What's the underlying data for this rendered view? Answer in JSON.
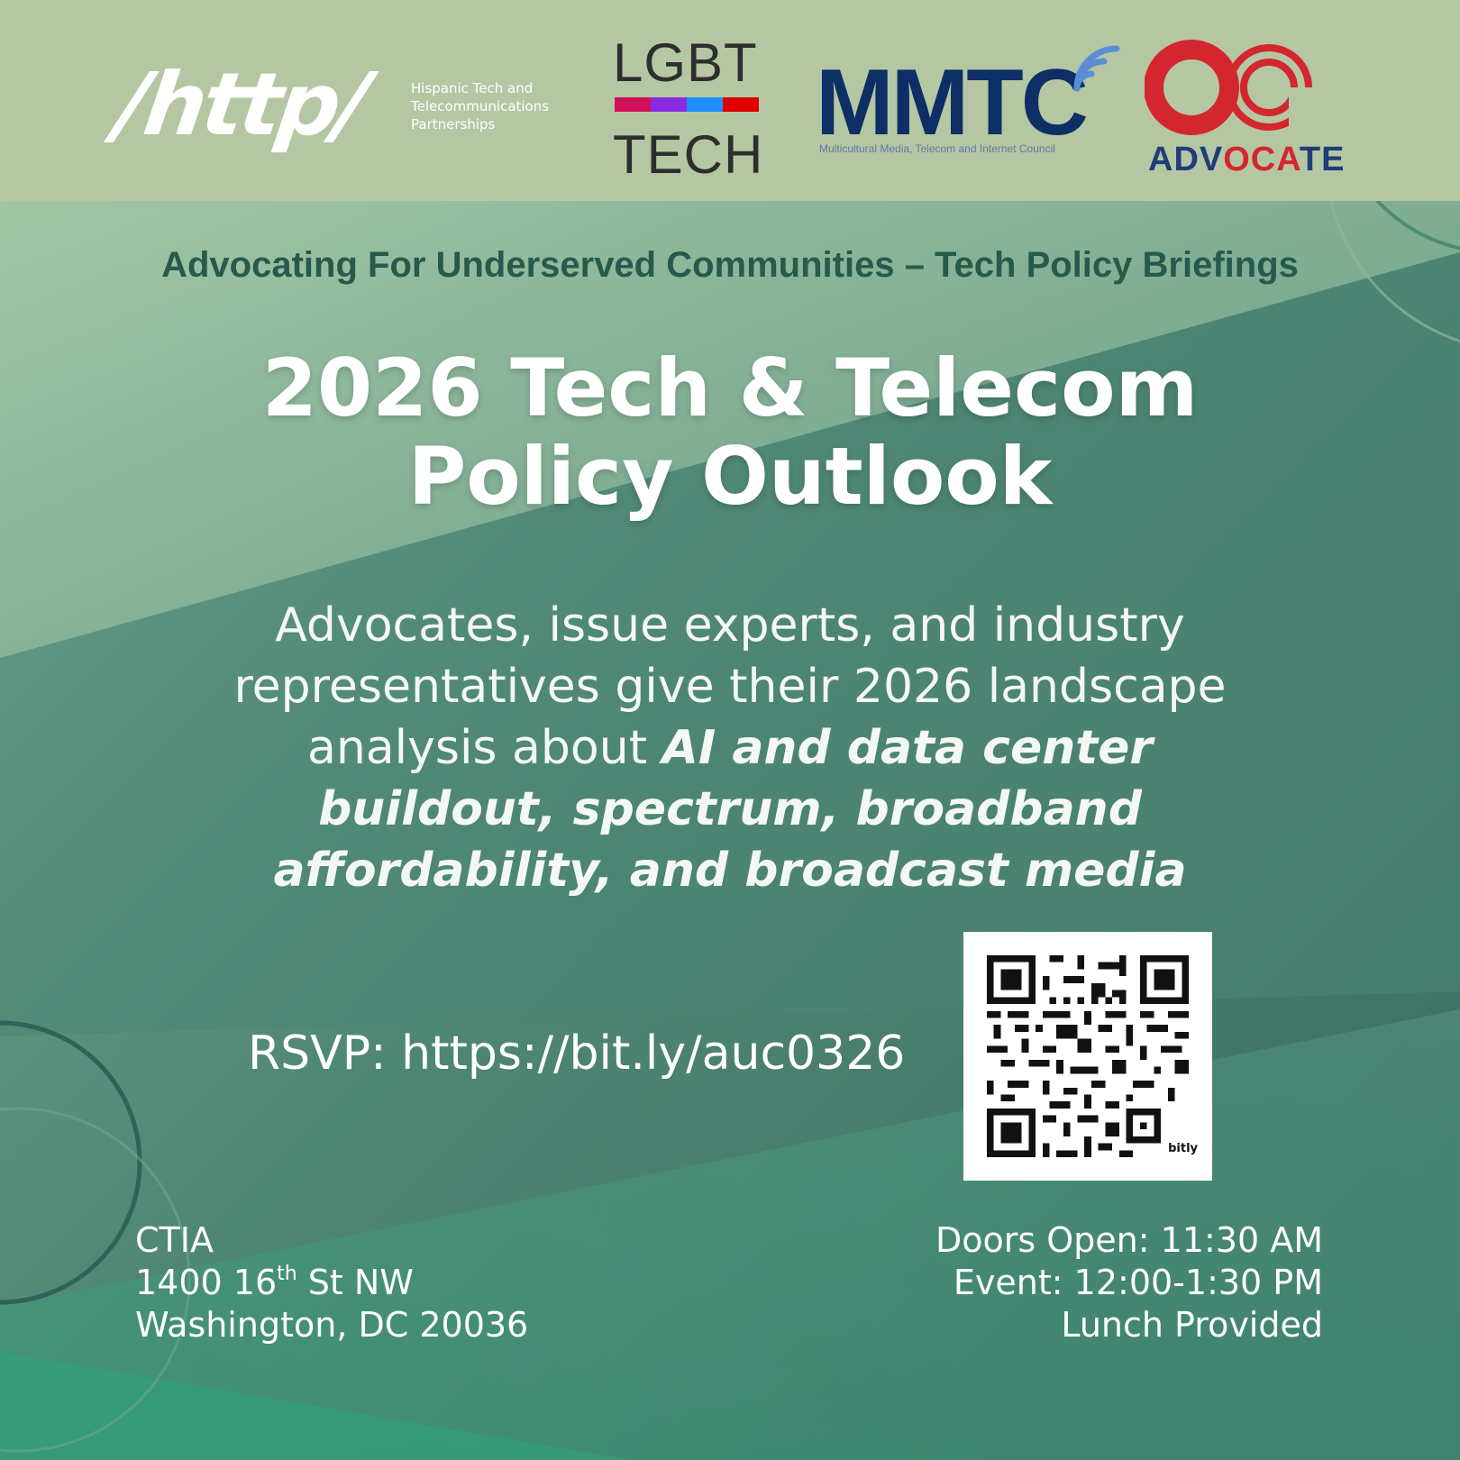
{
  "header": {
    "http_logo": "/http/",
    "http_subtitle": "Hispanic Tech and Telecommunications Partnerships",
    "lgbt_top": "LGBT",
    "lgbt_bottom": "TECH",
    "lgbt_bar_colors": [
      "#d1105a",
      "#8a2be2",
      "#1e90ff",
      "#e00000"
    ],
    "mmtc_logo": "MMTC",
    "mmtc_subtitle": "Multicultural Media, Telecom and Internet Council",
    "advocate_part1": "ADV",
    "advocate_part2": "OCA",
    "advocate_part3": "TE"
  },
  "subtitle": "Advocating For Underserved Communities – Tech Policy Briefings",
  "title": {
    "line1": "2026 Tech & Telecom",
    "line2": "Policy Outlook"
  },
  "description": {
    "plain": "Advocates, issue experts, and industry representatives give their 2026 landscape analysis about ",
    "emphasis": "AI and data center buildout, spectrum, broadband affordability, and broadcast media"
  },
  "rsvp": "RSVP: https://bit.ly/auc0326",
  "qr": {
    "brand": "bitly"
  },
  "address": {
    "venue": "CTIA",
    "street_prefix": "1400 16",
    "street_sup": "th",
    "street_suffix": " St NW",
    "city": "Washington, DC 20036"
  },
  "times": {
    "doors": "Doors Open: 11:30 AM",
    "event": "Event: 12:00-1:30 PM",
    "lunch": "Lunch Provided"
  },
  "colors": {
    "header_bg": "#b5c7a2",
    "subtitle": "#265a4d",
    "mmtc_blue": "#0d2f66",
    "advocate_red": "#d4262e",
    "advocate_blue": "#1f3d7a"
  }
}
